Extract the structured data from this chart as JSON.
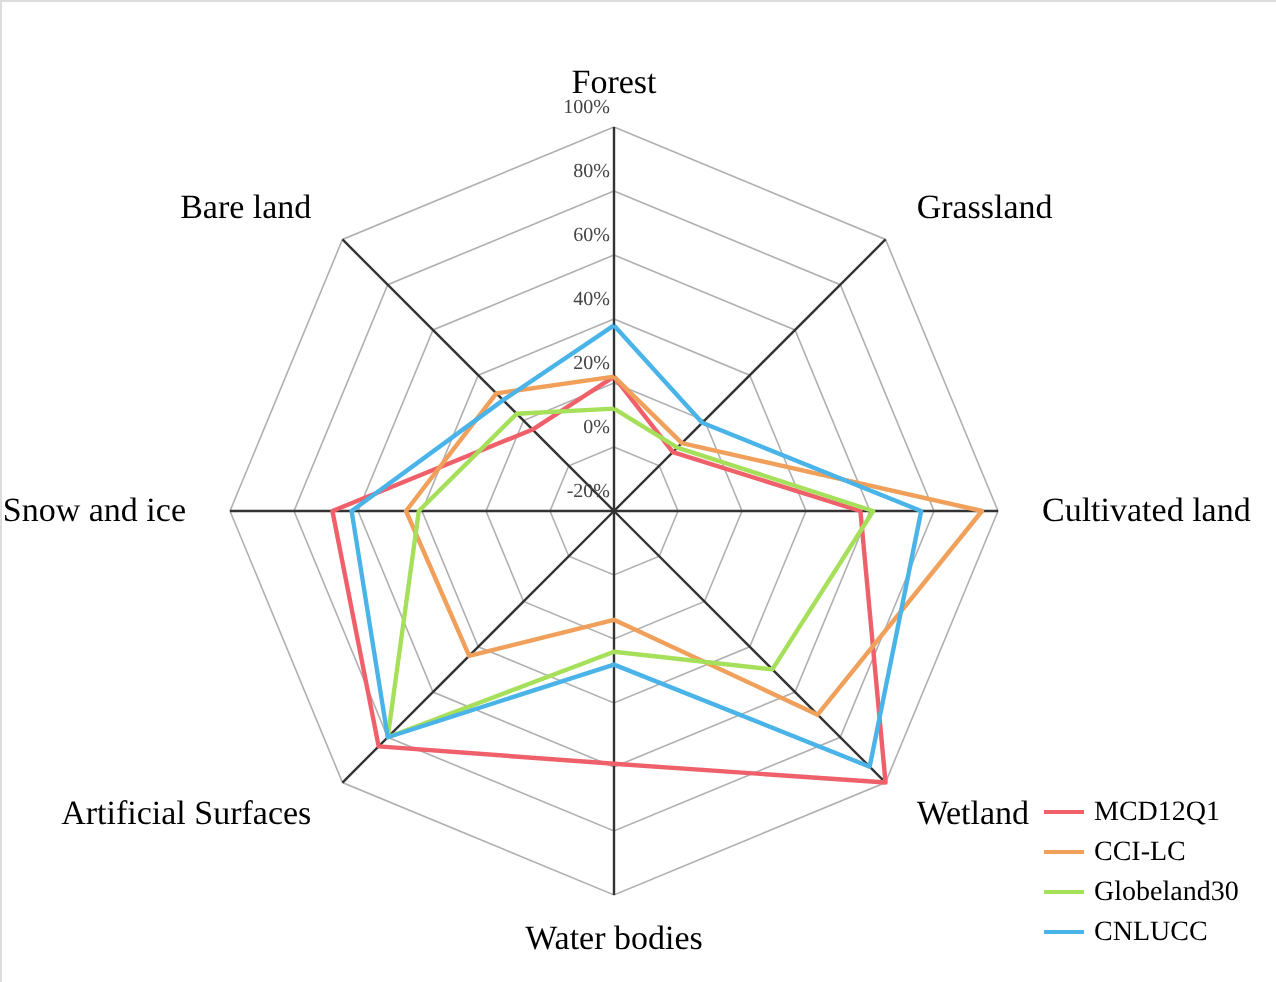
{
  "chart_data": {
    "type": "radar",
    "categories": [
      "Forest",
      "Grassland",
      "Cultivated land",
      "Wetland",
      "Water bodies",
      "Artificial Surfaces",
      "Snow and ice",
      "Bare land"
    ],
    "series": [
      {
        "name": "MCD12Q1",
        "color": "#f0606a",
        "values": [
          22,
          6,
          57,
          100,
          59,
          84,
          68,
          16
        ]
      },
      {
        "name": "CCI-LC",
        "color": "#f0a05a",
        "values": [
          22,
          10,
          95,
          70,
          14,
          44,
          45,
          32
        ]
      },
      {
        "name": "Globeland30",
        "color": "#a6e05a",
        "values": [
          12,
          8,
          61,
          50,
          24,
          80,
          41,
          23
        ]
      },
      {
        "name": "CNLUCC",
        "color": "#4ab4e8",
        "values": [
          38,
          19,
          76,
          93,
          28,
          80,
          62,
          29
        ]
      }
    ],
    "ylim": [
      -20,
      100
    ],
    "yticks": [
      {
        "value": -20,
        "label": "-20%"
      },
      {
        "value": 0,
        "label": "0%"
      },
      {
        "value": 20,
        "label": "20%"
      },
      {
        "value": 40,
        "label": "40%"
      },
      {
        "value": 60,
        "label": "60%"
      },
      {
        "value": 80,
        "label": "80%"
      },
      {
        "value": 100,
        "label": "100%"
      }
    ],
    "grid": true,
    "legend": "bottom right"
  }
}
